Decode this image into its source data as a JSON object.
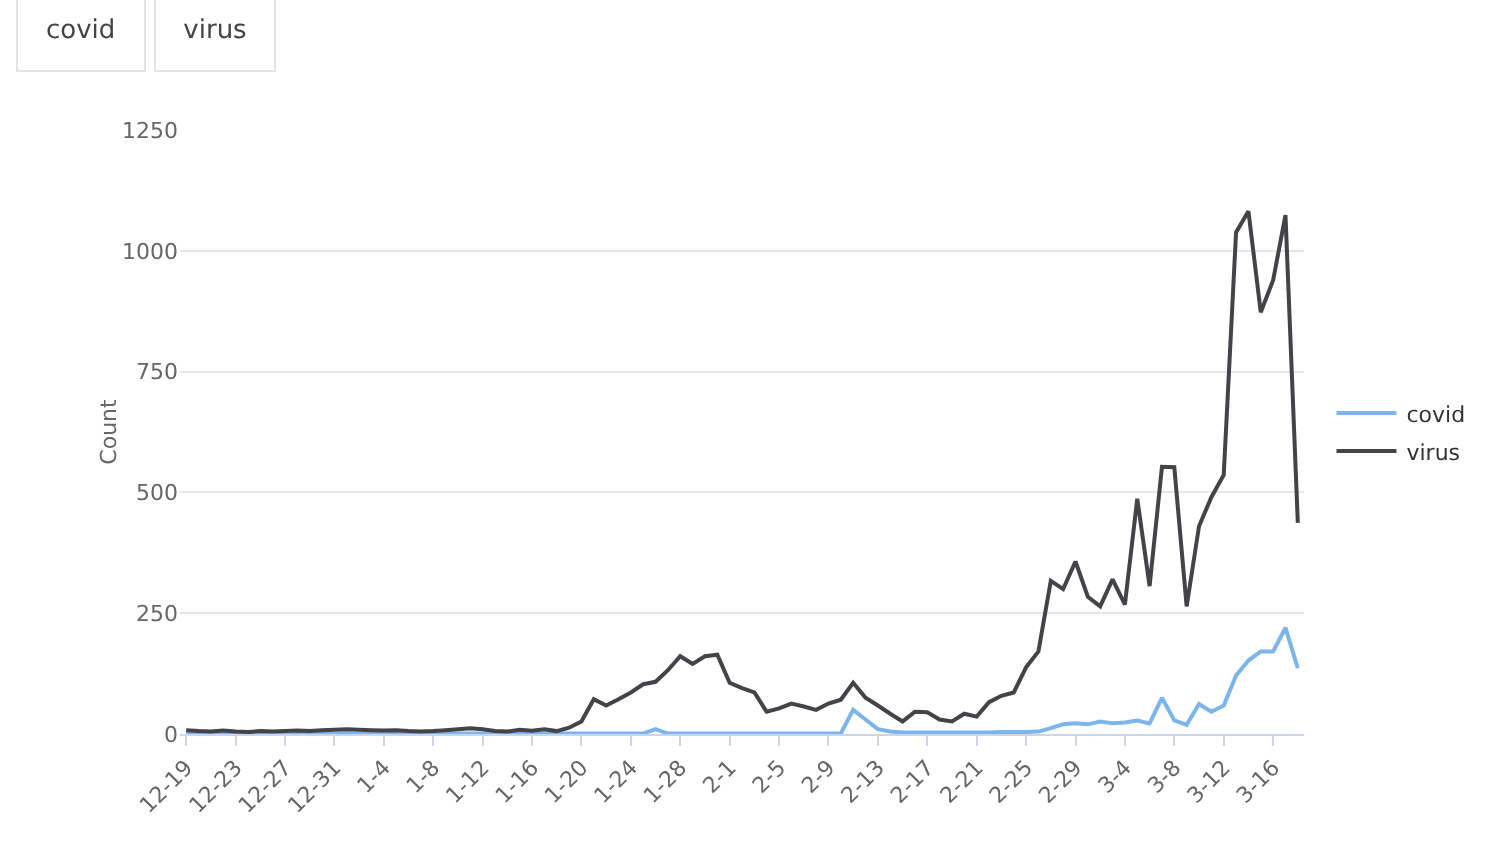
{
  "chart_data": {
    "type": "line",
    "ylabel": "Count",
    "annotations": [
      "covid",
      "virus"
    ],
    "categories": [
      "12-19",
      null,
      null,
      null,
      "12-23",
      null,
      null,
      null,
      "12-27",
      null,
      null,
      null,
      "12-31",
      null,
      null,
      null,
      "1-4",
      null,
      null,
      null,
      "1-8",
      null,
      null,
      null,
      "1-12",
      null,
      null,
      null,
      "1-16",
      null,
      null,
      null,
      "1-20",
      null,
      null,
      null,
      "1-24",
      null,
      null,
      null,
      "1-28",
      null,
      null,
      null,
      "2-1",
      null,
      null,
      null,
      "2-5",
      null,
      null,
      null,
      "2-9",
      null,
      null,
      null,
      "2-13",
      null,
      null,
      null,
      "2-17",
      null,
      null,
      null,
      "2-21",
      null,
      null,
      null,
      "2-25",
      null,
      null,
      null,
      "2-29",
      null,
      null,
      null,
      "3-4",
      null,
      null,
      null,
      "3-8",
      null,
      null,
      null,
      "3-12",
      null,
      null,
      null,
      "3-16",
      null,
      null
    ],
    "series": [
      {
        "name": "covid",
        "color": "#7cb5ec",
        "values": [
          1,
          1,
          1,
          1,
          1,
          1,
          1,
          1,
          1,
          1,
          1,
          1,
          1,
          1,
          1,
          1,
          1,
          1,
          1,
          1,
          1,
          1,
          1,
          1,
          1,
          1,
          1,
          1,
          1,
          1,
          1,
          1,
          1,
          1,
          1,
          1,
          1,
          1,
          10,
          1,
          1,
          1,
          1,
          1,
          1,
          1,
          1,
          1,
          1,
          1,
          1,
          1,
          1,
          1,
          50,
          30,
          10,
          5,
          3,
          3,
          3,
          3,
          3,
          3,
          3,
          3,
          4,
          4,
          4,
          5,
          12,
          20,
          22,
          20,
          26,
          22,
          24,
          28,
          22,
          75,
          28,
          19,
          62,
          46,
          59,
          121,
          152,
          171,
          171,
          220,
          136
        ]
      },
      {
        "name": "virus",
        "color": "#434348",
        "values": [
          8,
          6,
          5,
          7,
          5,
          4,
          6,
          5,
          6,
          7,
          6,
          8,
          9,
          10,
          9,
          8,
          7,
          8,
          6,
          5,
          6,
          8,
          10,
          12,
          10,
          6,
          5,
          9,
          7,
          10,
          6,
          13,
          26,
          72,
          59,
          72,
          86,
          103,
          108,
          132,
          161,
          145,
          161,
          164,
          106,
          95,
          86,
          46,
          53,
          63,
          57,
          50,
          63,
          71,
          106,
          75,
          59,
          42,
          26,
          46,
          45,
          30,
          26,
          42,
          36,
          66,
          79,
          86,
          138,
          171,
          317,
          300,
          357,
          284,
          264,
          320,
          268,
          487,
          306,
          553,
          552,
          264,
          430,
          490,
          536,
          1038,
          1082,
          873,
          939,
          1074,
          437
        ]
      }
    ],
    "ylim": [
      0,
      1250
    ],
    "yticks": [
      0,
      250,
      500,
      750,
      1000,
      1250
    ],
    "grid": "y",
    "legend": "right",
    "marker": "none",
    "line_style": "solid"
  }
}
